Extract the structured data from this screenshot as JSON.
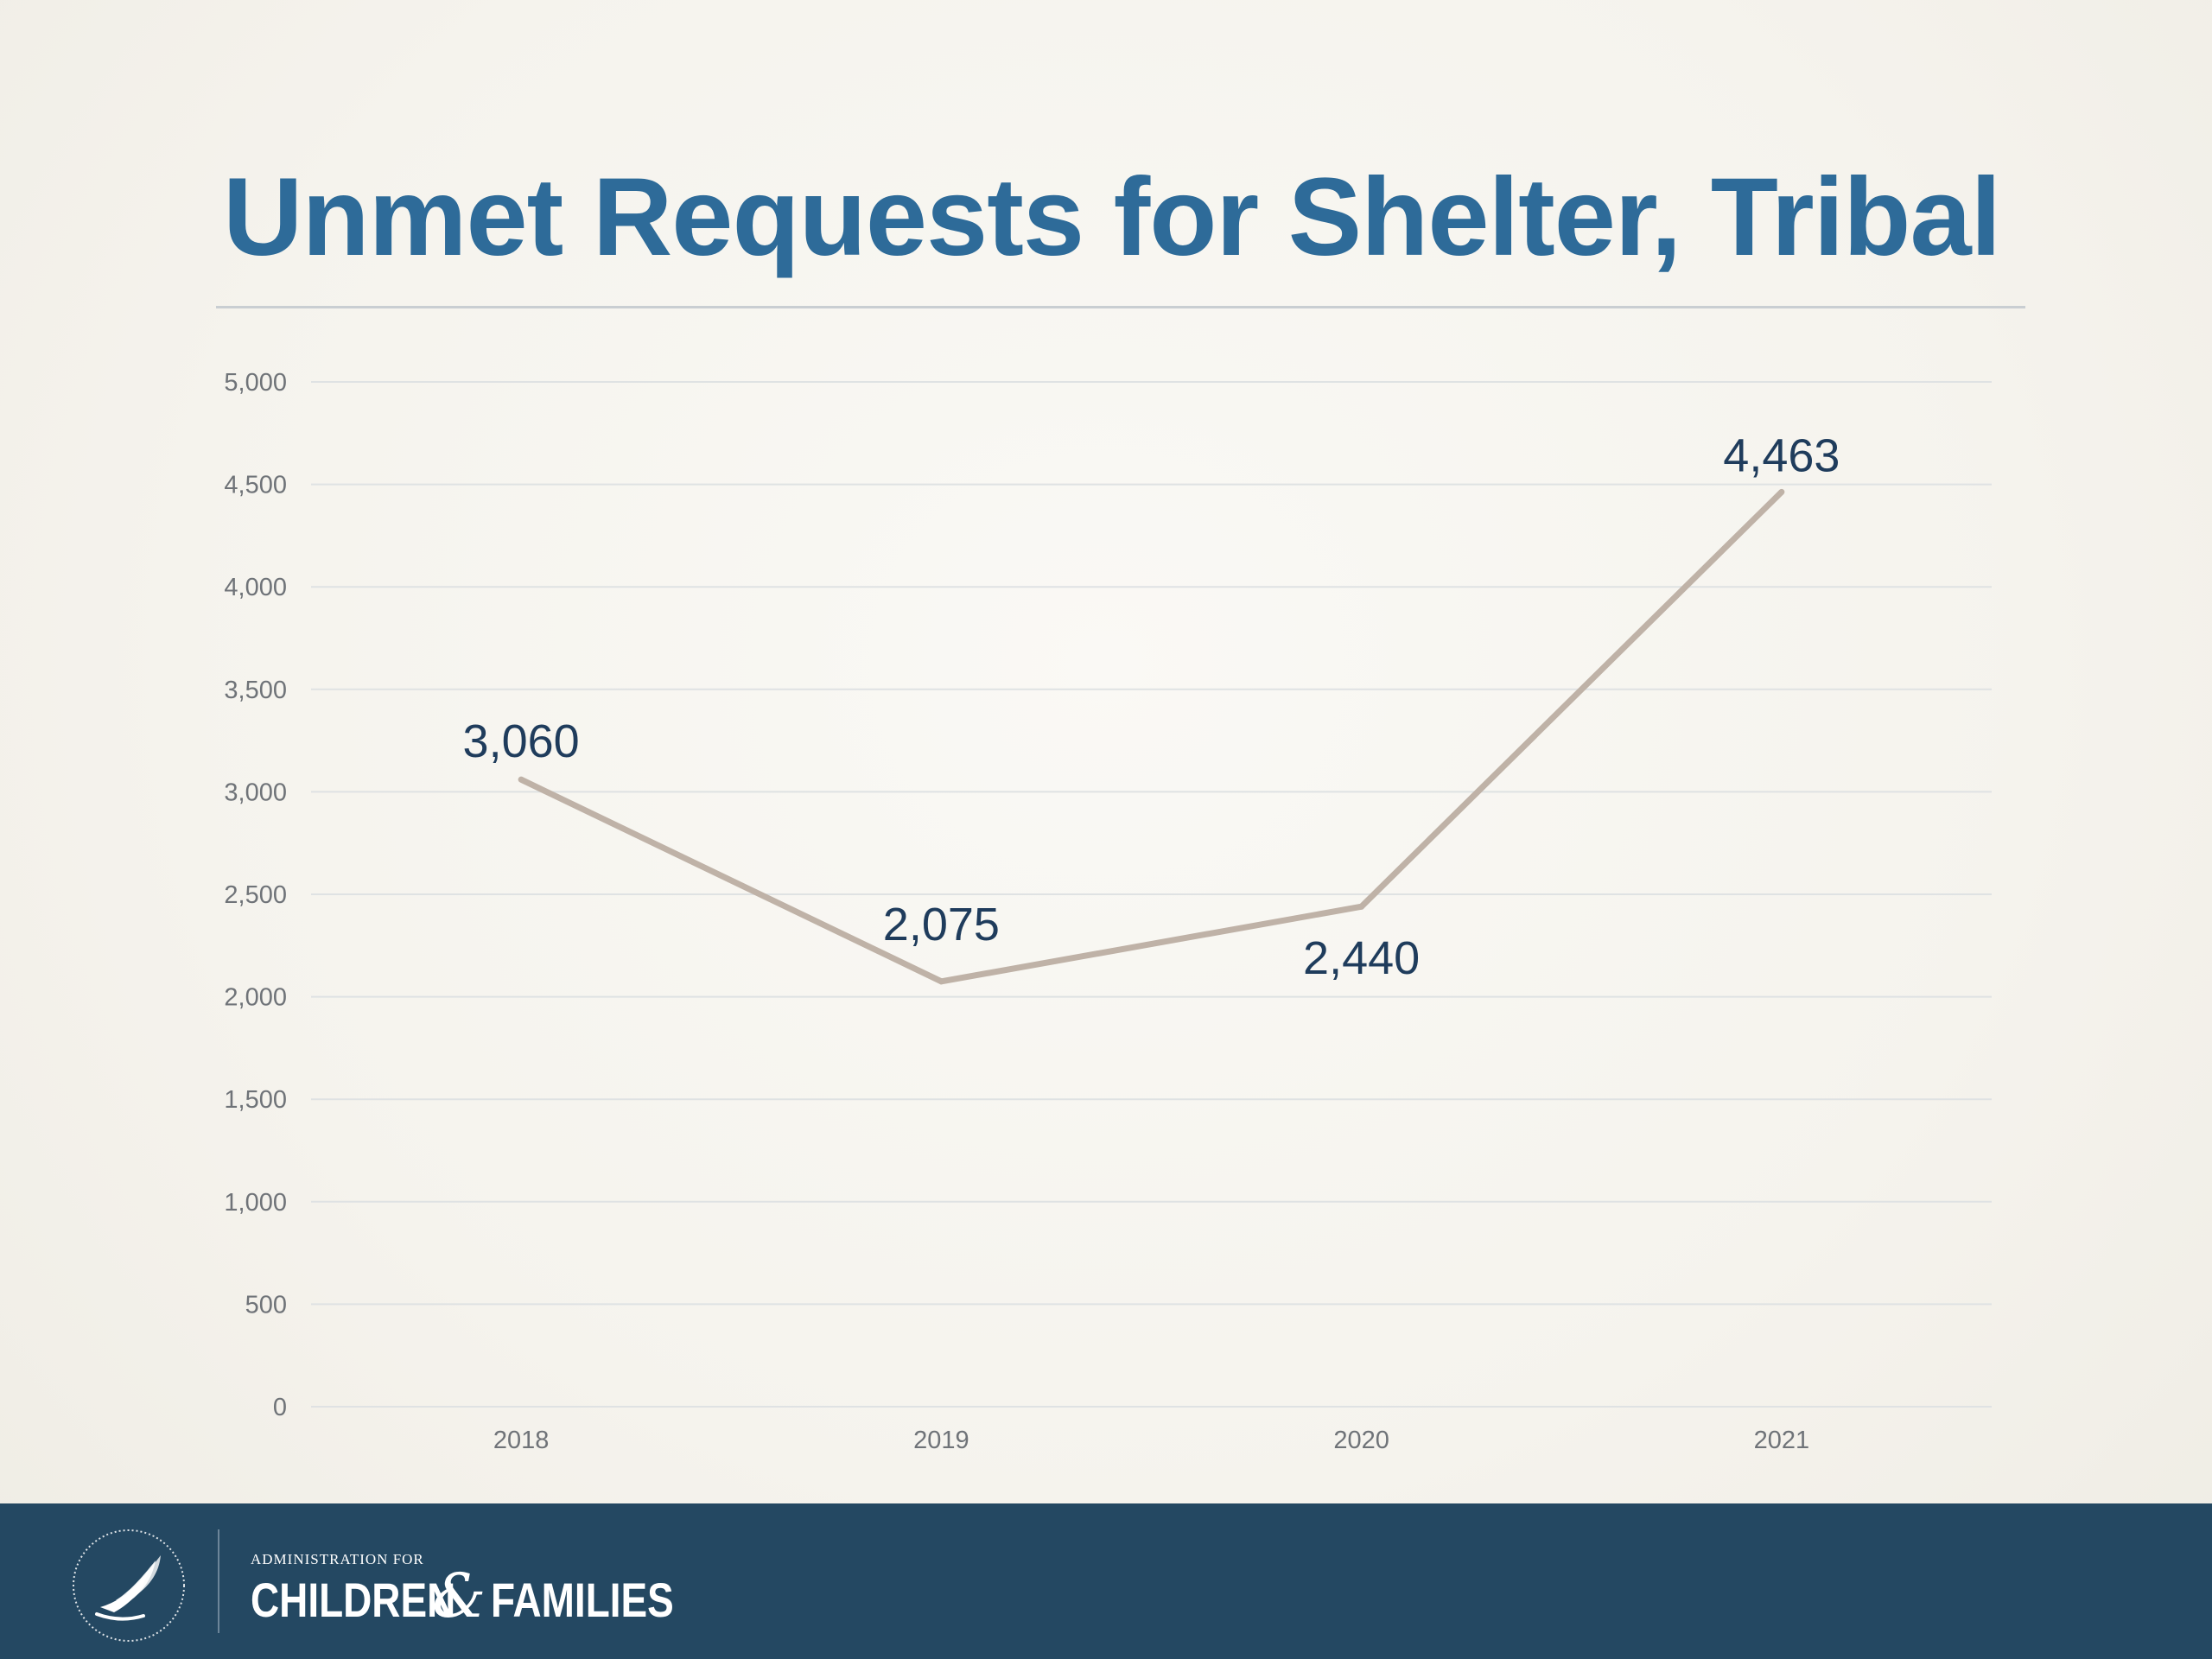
{
  "slide": {
    "title": "Unmet Requests for Shelter, Tribal"
  },
  "chart_data": {
    "type": "line",
    "title": "",
    "xlabel": "",
    "ylabel": "",
    "categories": [
      "2018",
      "2019",
      "2020",
      "2021"
    ],
    "series": [
      {
        "values": [
          3060,
          2075,
          2440,
          4463
        ],
        "color": "#bfb2a7"
      }
    ],
    "data_labels": [
      "3,060",
      "2,075",
      "2,440",
      "4,463"
    ],
    "y_ticks": [
      {
        "value": 0,
        "label": "0"
      },
      {
        "value": 500,
        "label": "500"
      },
      {
        "value": 1000,
        "label": "1,000"
      },
      {
        "value": 1500,
        "label": "1,500"
      },
      {
        "value": 2000,
        "label": "2,000"
      },
      {
        "value": 2500,
        "label": "2,500"
      },
      {
        "value": 3000,
        "label": "3,000"
      },
      {
        "value": 3500,
        "label": "3,500"
      },
      {
        "value": 4000,
        "label": "4,000"
      },
      {
        "value": 4500,
        "label": "4,500"
      },
      {
        "value": 5000,
        "label": "5,000"
      }
    ],
    "ylim": [
      0,
      5000
    ],
    "grid": true,
    "legend": "none"
  },
  "footer": {
    "org_small": "ADMINISTRATION FOR",
    "org_word1": "CHILDREN",
    "org_amp": "&",
    "org_word2": "FAMILIES",
    "seal_icon": "hhs-seal-icon",
    "background": "#244862"
  },
  "colors": {
    "title": "#2e6b99",
    "data_label": "#1f3c5c",
    "axis_label": "#6f7378",
    "gridline": "#dfe2e3"
  }
}
